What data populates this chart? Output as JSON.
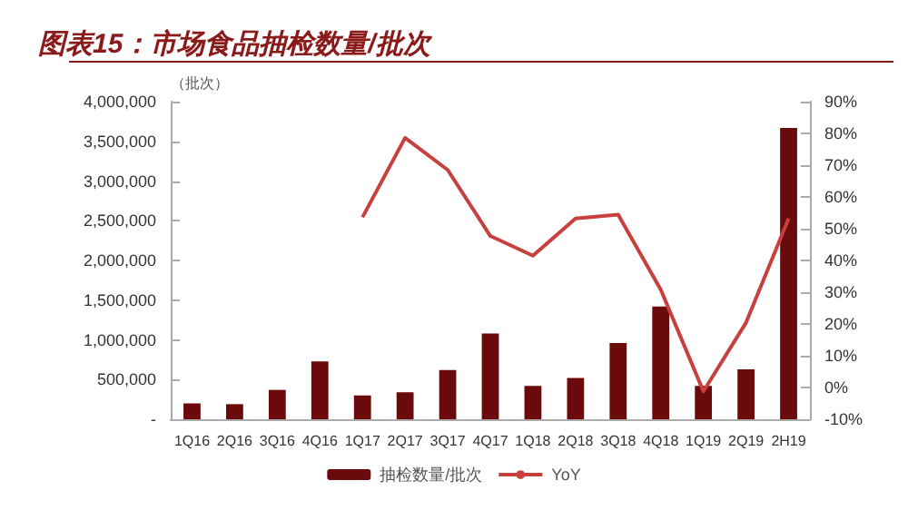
{
  "chart_data": {
    "type": "bar",
    "title": "图表15：市场食品抽检数量/批次",
    "ylabel": "（批次）",
    "categories": [
      "1Q16",
      "2Q16",
      "3Q16",
      "4Q16",
      "1Q17",
      "2Q17",
      "3Q17",
      "4Q17",
      "1Q18",
      "2Q18",
      "3Q18",
      "4Q18",
      "1Q19",
      "2Q19",
      "2H19"
    ],
    "series": [
      {
        "name": "抽检数量/批次",
        "color": "#6b0a0a",
        "values": [
          200000,
          190000,
          370000,
          730000,
          300000,
          340000,
          620000,
          1080000,
          420000,
          520000,
          960000,
          1420000,
          420000,
          630000,
          3670000
        ]
      },
      {
        "name": "YoY",
        "type": "line",
        "axis": "y2",
        "color": "#c8403d",
        "values": [
          null,
          null,
          null,
          null,
          53.6,
          78.6,
          68.5,
          47.7,
          41.5,
          53.2,
          54.4,
          30.8,
          -1.2,
          20.4,
          53.2
        ]
      }
    ],
    "ylim": [
      0,
      4000000
    ],
    "yticks": [
      {
        "value": 0,
        "label": "-"
      },
      {
        "value": 500000,
        "label": "500,000"
      },
      {
        "value": 1000000,
        "label": "1,000,000"
      },
      {
        "value": 1500000,
        "label": "1,500,000"
      },
      {
        "value": 2000000,
        "label": "2,000,000"
      },
      {
        "value": 2500000,
        "label": "2,500,000"
      },
      {
        "value": 3000000,
        "label": "3,000,000"
      },
      {
        "value": 3500000,
        "label": "3,500,000"
      },
      {
        "value": 4000000,
        "label": "4,000,000"
      }
    ],
    "y2lim": [
      -10,
      90
    ],
    "y2ticks": [
      {
        "value": -10,
        "label": "-10%"
      },
      {
        "value": 0,
        "label": "0%"
      },
      {
        "value": 10,
        "label": "10%"
      },
      {
        "value": 20,
        "label": "20%"
      },
      {
        "value": 30,
        "label": "30%"
      },
      {
        "value": 40,
        "label": "40%"
      },
      {
        "value": 50,
        "label": "50%"
      },
      {
        "value": 60,
        "label": "60%"
      },
      {
        "value": 70,
        "label": "70%"
      },
      {
        "value": 80,
        "label": "80%"
      },
      {
        "value": 90,
        "label": "90%"
      }
    ],
    "grid": false,
    "legend": "bottom",
    "marker": "none",
    "line_style": "solid"
  }
}
